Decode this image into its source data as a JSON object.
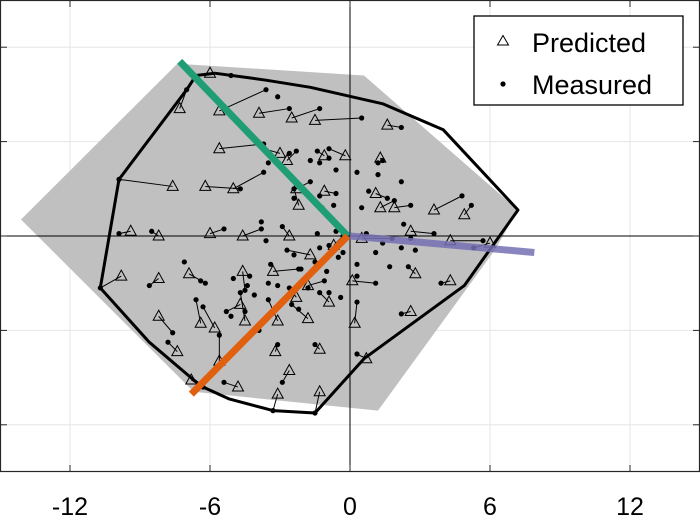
{
  "chart_data": {
    "type": "scatter",
    "title": "",
    "xlabel": "",
    "ylabel": "",
    "xlim": [
      -15,
      15
    ],
    "ylim": [
      -10,
      10
    ],
    "grid": true,
    "legend_position": "top-right",
    "x_ticks": [
      -12,
      -6,
      0,
      6,
      12
    ],
    "x_tick_labels": [
      "-12",
      "-6",
      "0",
      "6",
      "12"
    ],
    "y_ticks": [
      -8,
      -4,
      0,
      4,
      8
    ],
    "legend": [
      {
        "marker": "triangle",
        "label": "Predicted"
      },
      {
        "marker": "dot",
        "label": "Measured"
      }
    ],
    "colors": {
      "region_fill": "#c0c0c0",
      "hull": "#000000",
      "green_line": "#1f9e76",
      "orange_line": "#e0600f",
      "purple_line": "#7570b3",
      "grid": "#e6e6e6"
    },
    "shaded_region": [
      [
        -14.1,
        0.7
      ],
      [
        -7.4,
        7.3
      ],
      [
        0.6,
        6.8
      ],
      [
        7.2,
        1.1
      ],
      [
        6.2,
        -0.6
      ],
      [
        1.2,
        -7.4
      ],
      [
        -6.7,
        -6.6
      ]
    ],
    "hull": [
      [
        -7,
        6.2
      ],
      [
        -6.6,
        6.8
      ],
      [
        -5.8,
        6.9
      ],
      [
        -4.3,
        6.7
      ],
      [
        -3.6,
        6.6
      ],
      [
        -1.7,
        6.3
      ],
      [
        1.4,
        5.6
      ],
      [
        4,
        4.5
      ],
      [
        7.2,
        1.1
      ],
      [
        4.9,
        -2.1
      ],
      [
        0.6,
        -5.2
      ],
      [
        -1.5,
        -7.5
      ],
      [
        -3.3,
        -7.4
      ],
      [
        -5.2,
        -6.9
      ],
      [
        -6.3,
        -6.4
      ],
      [
        -6.7,
        -6.1
      ],
      [
        -8.6,
        -4.5
      ],
      [
        -10.7,
        -2.2
      ],
      [
        -9.9,
        2.4
      ]
    ],
    "reference_lines": [
      {
        "color": "green",
        "from": [
          -7.3,
          7.4
        ],
        "to": [
          -0.1,
          0
        ]
      },
      {
        "color": "orange",
        "from": [
          -6.8,
          -6.7
        ],
        "to": [
          -0.1,
          0
        ]
      },
      {
        "color": "purple",
        "from": [
          0,
          0
        ],
        "to": [
          7.9,
          -0.7
        ]
      }
    ],
    "pairs": [
      {
        "p": [
          -6,
          6.9
        ],
        "m": [
          -5.1,
          6.8
        ]
      },
      {
        "p": [
          -7.3,
          5.4
        ],
        "m": [
          -7,
          6.2
        ]
      },
      {
        "p": [
          -5.6,
          5.3
        ],
        "m": [
          -3.6,
          6.2
        ]
      },
      {
        "p": [
          -3.9,
          5.2
        ],
        "m": [
          -2.6,
          5.4
        ]
      },
      {
        "p": [
          -2.5,
          5
        ],
        "m": [
          -1.3,
          5.4
        ]
      },
      {
        "p": [
          -1.5,
          4.9
        ],
        "m": [
          0.5,
          5
        ]
      },
      {
        "p": [
          1.6,
          4.7
        ],
        "m": [
          2.2,
          4.6
        ]
      },
      {
        "p": [
          -5.6,
          3.7
        ],
        "m": [
          -3.7,
          3.9
        ]
      },
      {
        "p": [
          -3,
          3.5
        ],
        "m": [
          -3.7,
          3.7
        ]
      },
      {
        "p": [
          -2.7,
          3.2
        ],
        "m": [
          -2.3,
          3.6
        ]
      },
      {
        "p": [
          -1.1,
          3.4
        ],
        "m": [
          -1.4,
          3.6
        ]
      },
      {
        "p": [
          -0.2,
          3.4
        ],
        "m": [
          -0.9,
          3.7
        ]
      },
      {
        "p": [
          1.3,
          3.3
        ],
        "m": [
          1.4,
          3.2
        ]
      },
      {
        "p": [
          -7.6,
          2.1
        ],
        "m": [
          -9.9,
          2.4
        ]
      },
      {
        "p": [
          -6.2,
          2.1
        ],
        "m": [
          -4.7,
          2
        ]
      },
      {
        "p": [
          -5,
          2
        ],
        "m": [
          -3.7,
          2.7
        ]
      },
      {
        "p": [
          -2.3,
          2
        ],
        "m": [
          -1.7,
          2.3
        ]
      },
      {
        "p": [
          -2.2,
          1.3
        ],
        "m": [
          -2.4,
          2
        ]
      },
      {
        "p": [
          -1.1,
          1.9
        ],
        "m": [
          -0.6,
          1.8
        ]
      },
      {
        "p": [
          1.1,
          1.8
        ],
        "m": [
          1.6,
          1.6
        ]
      },
      {
        "p": [
          1.3,
          1.2
        ],
        "m": [
          1.9,
          1.5
        ]
      },
      {
        "p": [
          1.9,
          1.2
        ],
        "m": [
          2.6,
          1.3
        ]
      },
      {
        "p": [
          3.6,
          1.1
        ],
        "m": [
          4.8,
          1.7
        ]
      },
      {
        "p": [
          4.9,
          0.9
        ],
        "m": [
          5.2,
          1.3
        ]
      },
      {
        "p": [
          -9.4,
          0.2
        ],
        "m": [
          -9.9,
          0.1
        ]
      },
      {
        "p": [
          -8.2,
          0
        ],
        "m": [
          -8.5,
          0.2
        ]
      },
      {
        "p": [
          -6,
          0.1
        ],
        "m": [
          -5.4,
          0.3
        ]
      },
      {
        "p": [
          -4.6,
          0
        ],
        "m": [
          -3.8,
          0.3
        ]
      },
      {
        "p": [
          -2.6,
          0
        ],
        "m": [
          -2.9,
          0.4
        ]
      },
      {
        "p": [
          -0.7,
          -0.4
        ],
        "m": [
          -0.3,
          0
        ]
      },
      {
        "p": [
          0.5,
          -0.1
        ],
        "m": [
          1.8,
          -0.1
        ]
      },
      {
        "p": [
          2.6,
          0.2
        ],
        "m": [
          3.6,
          0.1
        ]
      },
      {
        "p": [
          4.3,
          -0.2
        ],
        "m": [
          5.7,
          -0.2
        ]
      },
      {
        "p": [
          6,
          -0.3
        ],
        "m": [
          5.3,
          -0.5
        ]
      },
      {
        "p": [
          -9.8,
          -1.7
        ],
        "m": [
          -10.7,
          -2.2
        ]
      },
      {
        "p": [
          -8.2,
          -1.8
        ],
        "m": [
          -8.6,
          -2.1
        ]
      },
      {
        "p": [
          -6.9,
          -1.6
        ],
        "m": [
          -6.2,
          -2
        ]
      },
      {
        "p": [
          -4.6,
          -1.5
        ],
        "m": [
          -4.5,
          -2.3
        ]
      },
      {
        "p": [
          -3.3,
          -1.5
        ],
        "m": [
          -2.2,
          -1.4
        ]
      },
      {
        "p": [
          -1.8,
          -2.1
        ],
        "m": [
          -1.1,
          -1.9
        ]
      },
      {
        "p": [
          0.1,
          -1.9
        ],
        "m": [
          1.1,
          -2
        ]
      },
      {
        "p": [
          2.8,
          -1.6
        ],
        "m": [
          2.5,
          -1.3
        ]
      },
      {
        "p": [
          4.3,
          -1.9
        ],
        "m": [
          3.9,
          -2
        ]
      },
      {
        "p": [
          -8.2,
          -3.4
        ],
        "m": [
          -7.6,
          -4.1
        ]
      },
      {
        "p": [
          -6.4,
          -3.7
        ],
        "m": [
          -6.6,
          -2.7
        ]
      },
      {
        "p": [
          -5.8,
          -3.9
        ],
        "m": [
          -6.3,
          -3
        ]
      },
      {
        "p": [
          -4.5,
          -3.6
        ],
        "m": [
          -4.7,
          -2.4
        ]
      },
      {
        "p": [
          -3.1,
          -3.6
        ],
        "m": [
          -3.5,
          -2.7
        ]
      },
      {
        "p": [
          -1.8,
          -3.5
        ],
        "m": [
          -2.5,
          -2.9
        ]
      },
      {
        "p": [
          0.2,
          -3.7
        ],
        "m": [
          0.3,
          -2.8
        ]
      },
      {
        "p": [
          2.6,
          -3.2
        ],
        "m": [
          2.2,
          -3.3
        ]
      },
      {
        "p": [
          -7.4,
          -4.9
        ],
        "m": [
          -7.8,
          -4.5
        ]
      },
      {
        "p": [
          -5.6,
          -5.3
        ],
        "m": [
          -5.6,
          -4.2
        ]
      },
      {
        "p": [
          -3.2,
          -4.9
        ],
        "m": [
          -3.1,
          -4.6
        ]
      },
      {
        "p": [
          -1.3,
          -4.8
        ],
        "m": [
          -1.5,
          -4.6
        ]
      },
      {
        "p": [
          0.7,
          -5.2
        ],
        "m": [
          0.3,
          -5
        ]
      },
      {
        "p": [
          -6.8,
          -6.1
        ],
        "m": [
          -6.3,
          -6.4
        ]
      },
      {
        "p": [
          -4.8,
          -6.4
        ],
        "m": [
          -5.4,
          -6.2
        ]
      },
      {
        "p": [
          -3.1,
          -6.7
        ],
        "m": [
          -3.3,
          -7.4
        ]
      },
      {
        "p": [
          -1.3,
          -6.6
        ],
        "m": [
          -1.5,
          -7.5
        ]
      },
      {
        "p": [
          -2.6,
          -5.7
        ],
        "m": [
          -2.9,
          -6.2
        ]
      },
      {
        "p": [
          -1.7,
          -0.8
        ],
        "m": [
          -2.7,
          -0.6
        ]
      },
      {
        "p": [
          -4.7,
          -2.9
        ],
        "m": [
          -5.3,
          -3.2
        ]
      },
      {
        "p": [
          -2.3,
          -2.6
        ],
        "m": [
          -2.6,
          -2.2
        ]
      },
      {
        "p": [
          -0.9,
          -2.8
        ],
        "m": [
          -1.3,
          -2.4
        ]
      }
    ],
    "extra_measured": [
      [
        -3.1,
        5.9
      ],
      [
        -3.5,
        3.1
      ],
      [
        -2.6,
        3.5
      ],
      [
        -1.7,
        3.2
      ],
      [
        -1.3,
        3.1
      ],
      [
        -0.9,
        3.3
      ],
      [
        -0.6,
        2.8
      ],
      [
        1.2,
        3.1
      ],
      [
        0.3,
        2.7
      ],
      [
        1.2,
        2.6
      ],
      [
        2.2,
        2.3
      ],
      [
        -2.4,
        1.6
      ],
      [
        -1.3,
        1.7
      ],
      [
        -0.7,
        1.3
      ],
      [
        0.8,
        1.9
      ],
      [
        0.5,
        1.2
      ],
      [
        -1.2,
        1.2
      ],
      [
        -3.8,
        0.6
      ],
      [
        -3.6,
        -0.2
      ],
      [
        -1.4,
        0.1
      ],
      [
        -1.3,
        -0.5
      ],
      [
        -0.9,
        -0.4
      ],
      [
        -0.3,
        -0.7
      ],
      [
        -0.6,
        0.2
      ],
      [
        0.7,
        0.1
      ],
      [
        2.3,
        0.5
      ],
      [
        2.6,
        -0.1
      ],
      [
        2.8,
        -0.6
      ],
      [
        2.2,
        -0.5
      ],
      [
        1.4,
        -0.3
      ],
      [
        -2.4,
        -0.8
      ],
      [
        -3.4,
        -1.2
      ],
      [
        -4.3,
        -1.7
      ],
      [
        -5,
        -1.8
      ],
      [
        -6.4,
        -1.9
      ],
      [
        -7.1,
        -1.1
      ],
      [
        -0.5,
        -0.9
      ],
      [
        0.3,
        -1.2
      ],
      [
        1.7,
        -1.3
      ],
      [
        1.1,
        -0.7
      ],
      [
        -3.1,
        -2.1
      ],
      [
        -1.8,
        -2.2
      ],
      [
        -0.4,
        -2.6
      ],
      [
        -0.9,
        -2.4
      ],
      [
        -4.1,
        -2.5
      ],
      [
        -4.4,
        -2.1
      ],
      [
        -3.5,
        -2
      ],
      [
        -2.1,
        -1.4
      ],
      [
        -1,
        -1.5
      ],
      [
        -1.5,
        -1.1
      ],
      [
        0.3,
        -1.7
      ],
      [
        -4.5,
        -3.2
      ],
      [
        -3.9,
        -4
      ],
      [
        -5.1,
        -3.4
      ],
      [
        -2.2,
        -3.1
      ]
    ]
  }
}
